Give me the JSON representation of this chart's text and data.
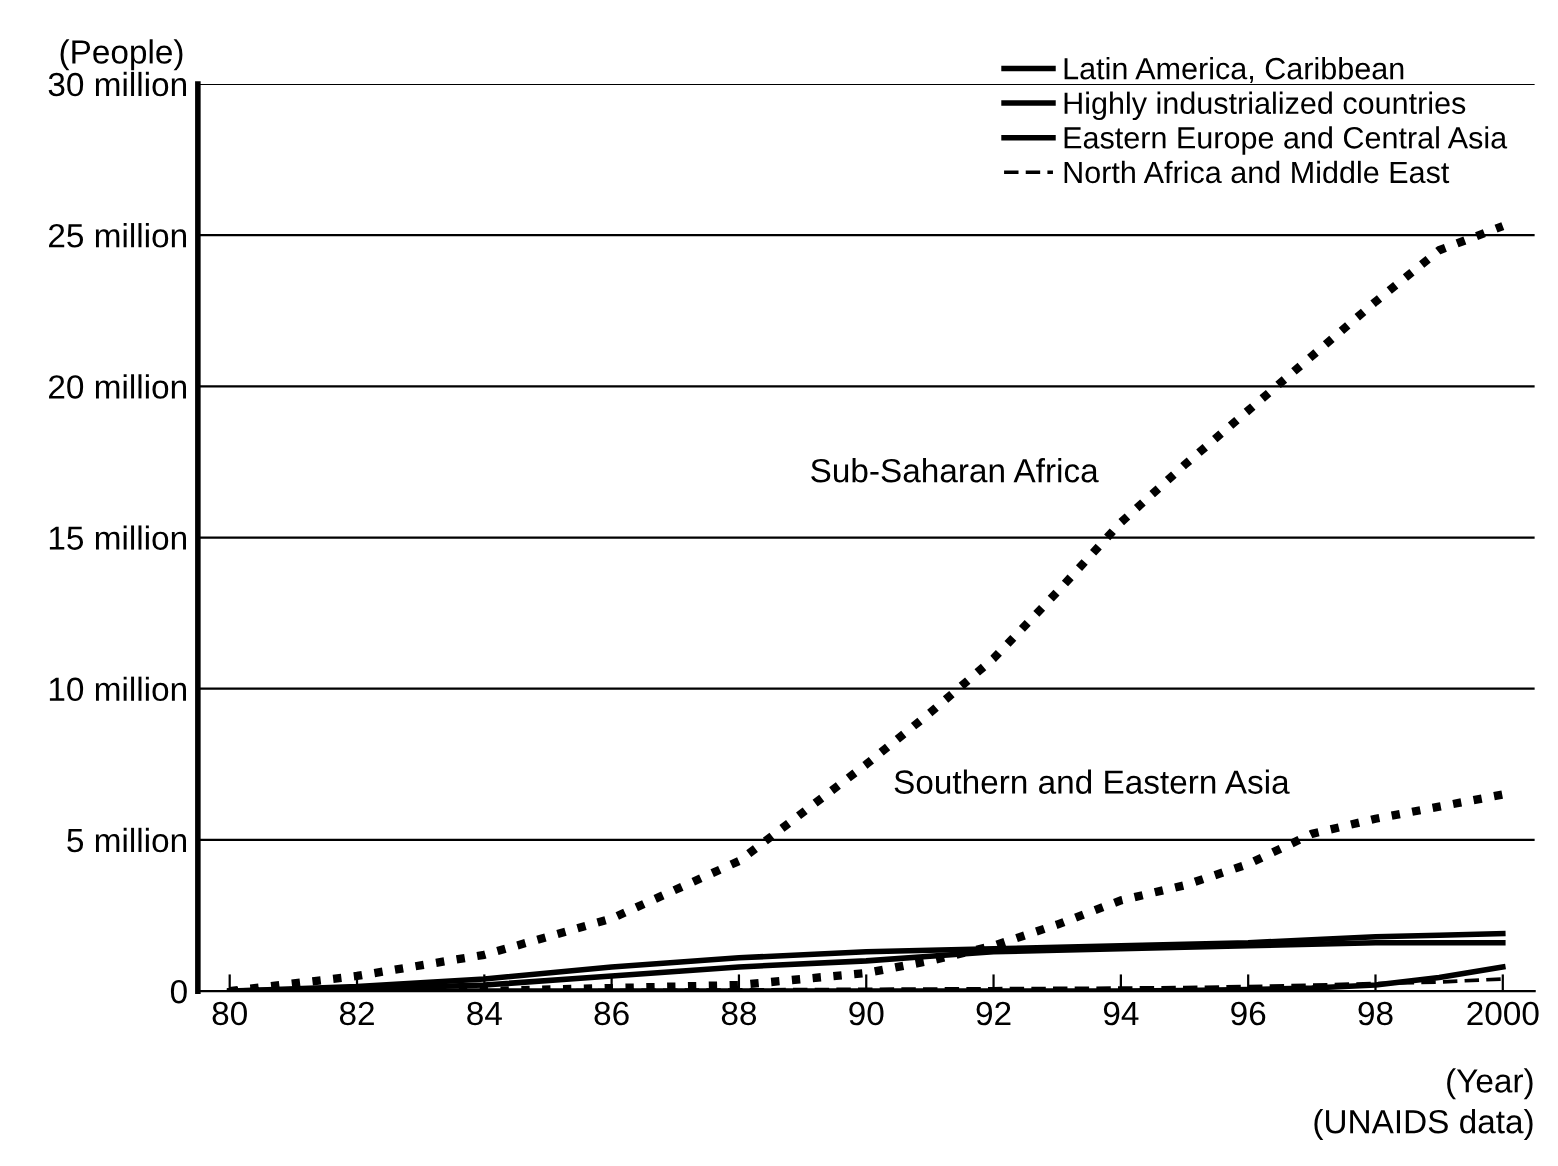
{
  "chart_data": {
    "type": "line",
    "x": [
      1980,
      1982,
      1984,
      1986,
      1988,
      1990,
      1991,
      1992,
      1993,
      1994,
      1995,
      1996,
      1997,
      1998,
      1999,
      2000
    ],
    "series": [
      {
        "name": "Latin America, Caribbean",
        "color": "#000000",
        "line_style": "solid",
        "values": [
          0,
          150000,
          400000,
          800000,
          1100000,
          1300000,
          1350000,
          1400000,
          1450000,
          1500000,
          1550000,
          1600000,
          1700000,
          1800000,
          1850000,
          1900000
        ]
      },
      {
        "name": "Highly industrialized countries",
        "color": "#000000",
        "line_style": "solid",
        "values": [
          0,
          80000,
          200000,
          500000,
          800000,
          1000000,
          1150000,
          1300000,
          1350000,
          1400000,
          1450000,
          1500000,
          1550000,
          1600000,
          1600000,
          1600000
        ]
      },
      {
        "name": "Eastern Europe and Central Asia",
        "color": "#000000",
        "line_style": "solid",
        "values": [
          0,
          0,
          0,
          0,
          0,
          0,
          0,
          0,
          0,
          0,
          20000,
          50000,
          100000,
          200000,
          450000,
          800000
        ]
      },
      {
        "name": "North Africa and Middle East",
        "color": "#000000",
        "line_style": "dashed",
        "values": [
          0,
          0,
          0,
          20000,
          40000,
          60000,
          70000,
          80000,
          90000,
          100000,
          120000,
          150000,
          200000,
          250000,
          300000,
          400000
        ]
      },
      {
        "color": "#000000",
        "line_style": "dotted",
        "values": [
          0,
          500000,
          1200000,
          2400000,
          4300000,
          7500000,
          9200000,
          11000000,
          13200000,
          15500000,
          17400000,
          19200000,
          21000000,
          22800000,
          24500000,
          25300000
        ]
      },
      {
        "color": "#000000",
        "line_style": "dotted",
        "values": [
          0,
          0,
          0,
          100000,
          200000,
          600000,
          1000000,
          1500000,
          2200000,
          3000000,
          3500000,
          4200000,
          5200000,
          5700000,
          6100000,
          6500000
        ]
      }
    ],
    "ylabel": "(People)",
    "xlabel": "(Year)",
    "annotations": [
      {
        "text": "Sub-Saharan Africa",
        "x": 1994,
        "y": 15500000
      },
      {
        "text": "Southern and Eastern Asia",
        "x": 1997,
        "y": 5200000
      },
      "(UNAIDS data)"
    ],
    "xlim": [
      1979.5,
      2000.5
    ],
    "ylim": [
      0,
      30000000
    ],
    "xticks": [
      {
        "value": 1980,
        "label": "80"
      },
      {
        "value": 1982,
        "label": "82"
      },
      {
        "value": 1984,
        "label": "84"
      },
      {
        "value": 1986,
        "label": "86"
      },
      {
        "value": 1988,
        "label": "88"
      },
      {
        "value": 1990,
        "label": "90"
      },
      {
        "value": 1992,
        "label": "92"
      },
      {
        "value": 1994,
        "label": "94"
      },
      {
        "value": 1996,
        "label": "96"
      },
      {
        "value": 1998,
        "label": "98"
      },
      2000
    ],
    "yticks": [
      0,
      {
        "value": 5000000,
        "label": "5 million"
      },
      {
        "value": 10000000,
        "label": "10 million"
      },
      {
        "value": 15000000,
        "label": "15 million"
      },
      {
        "value": 20000000,
        "label": "20 million"
      },
      {
        "value": 25000000,
        "label": "25 million"
      },
      {
        "value": 30000000,
        "label": "30 million"
      }
    ],
    "grid": "y",
    "legend": "top right"
  }
}
